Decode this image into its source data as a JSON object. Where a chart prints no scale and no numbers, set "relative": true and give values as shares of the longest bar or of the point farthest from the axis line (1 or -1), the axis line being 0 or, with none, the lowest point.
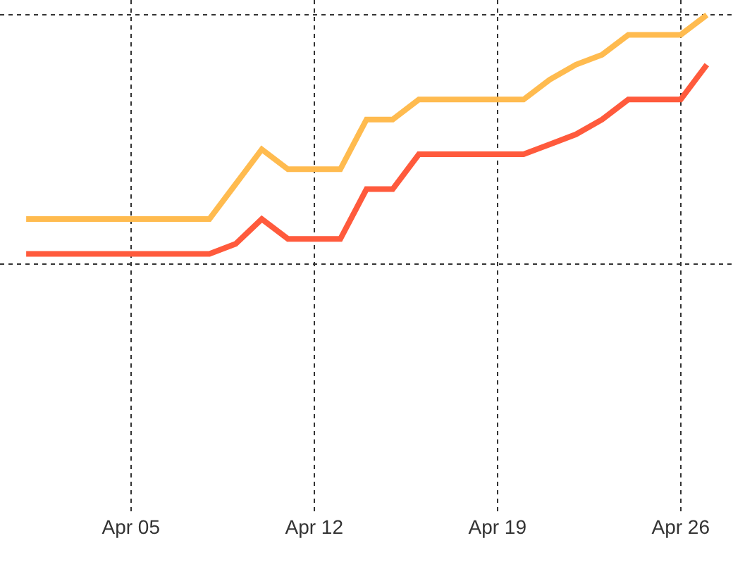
{
  "chart_data": {
    "type": "line",
    "relative": true,
    "grid": true,
    "marker": "none",
    "line_style": "solid",
    "x": [
      "--04-01",
      "--04-02",
      "--04-03",
      "--04-04",
      "--04-05",
      "--04-06",
      "--04-07",
      "--04-08",
      "--04-09",
      "--04-10",
      "--04-11",
      "--04-12",
      "--04-13",
      "--04-14",
      "--04-15",
      "--04-16",
      "--04-17",
      "--04-18",
      "--04-19",
      "--04-20",
      "--04-21",
      "--04-22",
      "--04-23",
      "--04-24",
      "--04-25",
      "--04-26",
      "--04-27"
    ],
    "xlim": [
      "--03-31",
      "--04-28"
    ],
    "xticks": [
      {
        "value": "--04-05",
        "label": "Apr 05"
      },
      {
        "value": "--04-12",
        "label": "Apr 12"
      },
      {
        "value": "--04-19",
        "label": "Apr 19"
      },
      {
        "value": "--04-26",
        "label": "Apr 26"
      }
    ],
    "series": [
      {
        "color": "#ffbb4f",
        "values": [
          0.59,
          0.59,
          0.59,
          0.59,
          0.59,
          0.59,
          0.59,
          0.59,
          0.66,
          0.73,
          0.69,
          0.69,
          0.69,
          0.79,
          0.79,
          0.83,
          0.83,
          0.83,
          0.83,
          0.83,
          0.87,
          0.9,
          0.92,
          0.96,
          0.96,
          0.96,
          1
        ]
      },
      {
        "color": "#ff5a3c",
        "values": [
          0.52,
          0.52,
          0.52,
          0.52,
          0.52,
          0.52,
          0.52,
          0.52,
          0.54,
          0.59,
          0.55,
          0.55,
          0.55,
          0.65,
          0.65,
          0.72,
          0.72,
          0.72,
          0.72,
          0.72,
          0.74,
          0.76,
          0.79,
          0.83,
          0.83,
          0.83,
          0.9
        ]
      }
    ]
  }
}
